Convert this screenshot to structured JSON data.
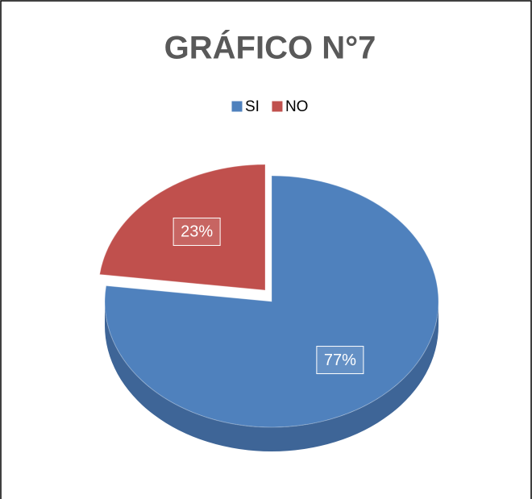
{
  "chart_data": {
    "type": "pie",
    "title": "GRÁFICO N°7",
    "categories": [
      "SI",
      "NO"
    ],
    "values": [
      77,
      23
    ],
    "value_labels": [
      "77%",
      "23%"
    ],
    "colors": [
      "#4f81bd",
      "#c0504d"
    ],
    "legend": "top"
  }
}
